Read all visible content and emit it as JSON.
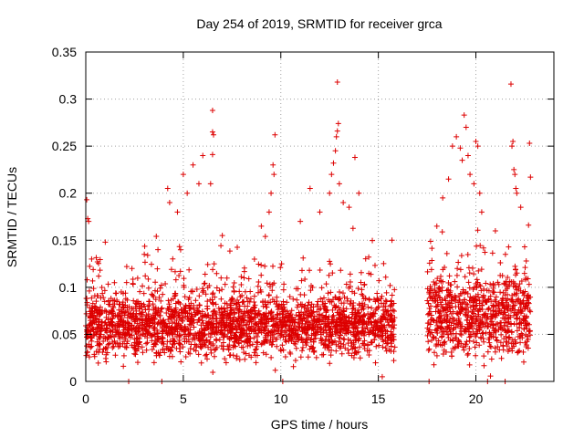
{
  "chart_data": {
    "type": "scatter",
    "title": "Day 254 of 2019, SRMTID for receiver grca",
    "xlabel": "GPS time / hours",
    "ylabel": "SRMTID / TECUs",
    "xlim": [
      0,
      24
    ],
    "ylim": [
      0,
      0.35
    ],
    "xticks": [
      0,
      5,
      10,
      15,
      20
    ],
    "yticks": [
      0,
      0.05,
      0.1,
      0.15,
      0.2,
      0.25,
      0.3,
      0.35
    ],
    "xtick_labels": [
      "0",
      "5",
      "10",
      "15",
      "20"
    ],
    "ytick_labels": [
      "0",
      "0.05",
      "0.1",
      "0.15",
      "0.2",
      "0.25",
      "0.3",
      "0.35"
    ],
    "grid": true,
    "marker": "+",
    "color": "#dd0000",
    "series": [
      {
        "name": "SRMTID",
        "segments": [
          {
            "x_start": 0.0,
            "x_end": 15.85,
            "typical": 0.06,
            "spread": 0.045
          },
          {
            "x_start": 17.5,
            "x_end": 22.8,
            "typical": 0.07,
            "spread": 0.06
          }
        ],
        "points": [
          {
            "x": 0.05,
            "y": 0.193
          },
          {
            "x": 0.1,
            "y": 0.173
          },
          {
            "x": 0.15,
            "y": 0.17
          },
          {
            "x": 0.3,
            "y": 0.13
          },
          {
            "x": 0.6,
            "y": 0.127
          },
          {
            "x": 1.0,
            "y": 0.148
          },
          {
            "x": 2.1,
            "y": 0.122
          },
          {
            "x": 3.0,
            "y": 0.135
          },
          {
            "x": 3.7,
            "y": 0.14
          },
          {
            "x": 4.2,
            "y": 0.205
          },
          {
            "x": 4.3,
            "y": 0.19
          },
          {
            "x": 4.7,
            "y": 0.18
          },
          {
            "x": 5.0,
            "y": 0.22
          },
          {
            "x": 5.2,
            "y": 0.2
          },
          {
            "x": 5.5,
            "y": 0.23
          },
          {
            "x": 5.8,
            "y": 0.21
          },
          {
            "x": 6.0,
            "y": 0.24
          },
          {
            "x": 6.5,
            "y": 0.288
          },
          {
            "x": 6.5,
            "y": 0.265
          },
          {
            "x": 6.55,
            "y": 0.262
          },
          {
            "x": 6.5,
            "y": 0.241
          },
          {
            "x": 6.4,
            "y": 0.21
          },
          {
            "x": 7.0,
            "y": 0.155
          },
          {
            "x": 9.0,
            "y": 0.165
          },
          {
            "x": 9.7,
            "y": 0.262
          },
          {
            "x": 9.6,
            "y": 0.23
          },
          {
            "x": 9.65,
            "y": 0.22
          },
          {
            "x": 9.5,
            "y": 0.2
          },
          {
            "x": 9.4,
            "y": 0.18
          },
          {
            "x": 12.9,
            "y": 0.318
          },
          {
            "x": 12.95,
            "y": 0.274
          },
          {
            "x": 12.9,
            "y": 0.266
          },
          {
            "x": 12.85,
            "y": 0.26
          },
          {
            "x": 12.8,
            "y": 0.245
          },
          {
            "x": 12.7,
            "y": 0.232
          },
          {
            "x": 12.6,
            "y": 0.22
          },
          {
            "x": 12.5,
            "y": 0.2
          },
          {
            "x": 13.0,
            "y": 0.21
          },
          {
            "x": 13.2,
            "y": 0.19
          },
          {
            "x": 13.8,
            "y": 0.238
          },
          {
            "x": 14.0,
            "y": 0.2
          },
          {
            "x": 13.5,
            "y": 0.185
          },
          {
            "x": 11.5,
            "y": 0.205
          },
          {
            "x": 11.0,
            "y": 0.17
          },
          {
            "x": 12.0,
            "y": 0.18
          },
          {
            "x": 15.7,
            "y": 0.15
          },
          {
            "x": 18.0,
            "y": 0.165
          },
          {
            "x": 18.3,
            "y": 0.195
          },
          {
            "x": 18.6,
            "y": 0.215
          },
          {
            "x": 18.8,
            "y": 0.25
          },
          {
            "x": 19.0,
            "y": 0.26
          },
          {
            "x": 19.2,
            "y": 0.248
          },
          {
            "x": 19.3,
            "y": 0.235
          },
          {
            "x": 19.5,
            "y": 0.27
          },
          {
            "x": 19.4,
            "y": 0.283
          },
          {
            "x": 19.6,
            "y": 0.24
          },
          {
            "x": 19.7,
            "y": 0.22
          },
          {
            "x": 19.9,
            "y": 0.21
          },
          {
            "x": 20.0,
            "y": 0.255
          },
          {
            "x": 20.1,
            "y": 0.25
          },
          {
            "x": 20.2,
            "y": 0.2
          },
          {
            "x": 20.3,
            "y": 0.18
          },
          {
            "x": 21.0,
            "y": 0.16
          },
          {
            "x": 21.8,
            "y": 0.316
          },
          {
            "x": 21.9,
            "y": 0.255
          },
          {
            "x": 21.85,
            "y": 0.25
          },
          {
            "x": 21.95,
            "y": 0.225
          },
          {
            "x": 22.0,
            "y": 0.22
          },
          {
            "x": 22.05,
            "y": 0.205
          },
          {
            "x": 22.1,
            "y": 0.2
          },
          {
            "x": 22.3,
            "y": 0.185
          },
          {
            "x": 22.75,
            "y": 0.253
          },
          {
            "x": 22.8,
            "y": 0.217
          },
          {
            "x": 22.7,
            "y": 0.166
          },
          {
            "x": 22.5,
            "y": 0.143
          },
          {
            "x": 17.6,
            "y": 0.0
          },
          {
            "x": 20.6,
            "y": 0.0
          },
          {
            "x": 21.5,
            "y": 0.0
          },
          {
            "x": 2.2,
            "y": 0.0
          },
          {
            "x": 10.1,
            "y": 0.0
          },
          {
            "x": 15.2,
            "y": 0.005
          },
          {
            "x": 3.9,
            "y": 0.0
          }
        ]
      }
    ]
  }
}
